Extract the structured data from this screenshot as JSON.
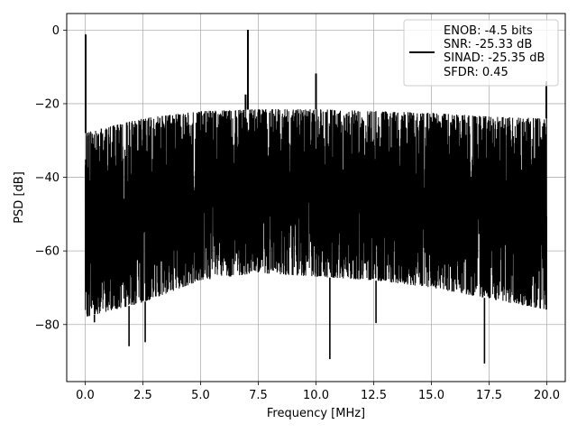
{
  "chart_data": {
    "type": "line",
    "xlabel": "Frequency [MHz]",
    "ylabel": "PSD [dB]",
    "xlim": [
      -0.8,
      20.8
    ],
    "ylim": [
      -95.5,
      4.5
    ],
    "xticks": [
      0.0,
      2.5,
      5.0,
      7.5,
      10.0,
      12.5,
      15.0,
      17.5,
      20.0
    ],
    "xtick_labels": [
      "0.0",
      "2.5",
      "5.0",
      "7.5",
      "10.0",
      "12.5",
      "15.0",
      "17.5",
      "20.0"
    ],
    "yticks": [
      0,
      -20,
      -40,
      -60,
      -80
    ],
    "ytick_labels": [
      "0",
      "−20",
      "−40",
      "−60",
      "−80"
    ],
    "grid": true,
    "legend_position": "top-right",
    "legend_lines": [
      "ENOB: -4.5 bits",
      "SNR: -25.33 dB",
      "SINAD: -25.35 dB",
      "SFDR: 0.45"
    ],
    "series": [
      {
        "color": "#000000",
        "noise_upper_envelope": {
          "x": [
            0.0,
            0.5,
            2.5,
            5.0,
            7.5,
            10.0,
            12.5,
            15.0,
            17.5,
            20.0
          ],
          "y": [
            -28,
            -27,
            -24,
            -22,
            -21.5,
            -21.5,
            -22,
            -22.5,
            -23.5,
            -24
          ]
        },
        "noise_lower_envelope": {
          "x": [
            0.0,
            2.5,
            5.0,
            7.5,
            10.0,
            12.5,
            15.0,
            17.5,
            20.0
          ],
          "y": [
            -78,
            -74,
            -68,
            -66,
            -67,
            -68,
            -70,
            -73,
            -76
          ]
        },
        "peaks": [
          {
            "x": 0.02,
            "y": -1.2
          },
          {
            "x": 7.05,
            "y": 0.1
          },
          {
            "x": 6.95,
            "y": -17.5
          },
          {
            "x": 10.0,
            "y": -11.8
          },
          {
            "x": 19.98,
            "y": -14.0
          }
        ],
        "dips": [
          {
            "x": 1.9,
            "y": -85.9
          },
          {
            "x": 2.6,
            "y": -84.8
          },
          {
            "x": 10.6,
            "y": -89.4
          },
          {
            "x": 17.3,
            "y": -90.6
          },
          {
            "x": 12.6,
            "y": -79.6
          },
          {
            "x": 0.4,
            "y": -79.4
          }
        ]
      }
    ]
  }
}
